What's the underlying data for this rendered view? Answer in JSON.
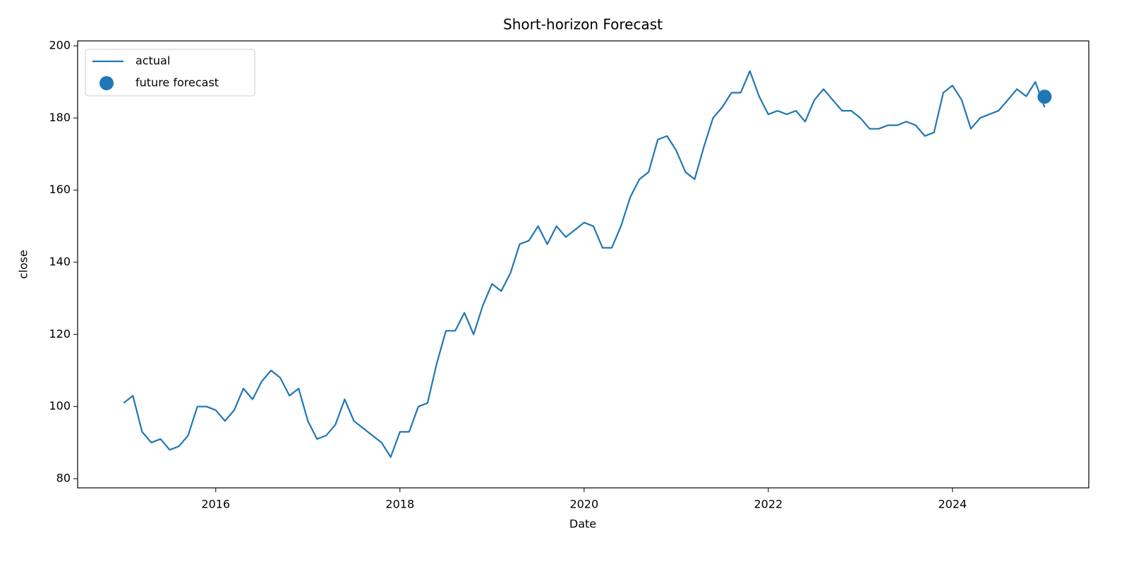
{
  "chart_data": {
    "type": "line",
    "title": "Short-horizon Forecast",
    "x_label": "Date",
    "y_label": "close",
    "xlim": [
      2014.5,
      2025.48
    ],
    "xticks": [
      2016,
      2018,
      2020,
      2022,
      2024
    ],
    "ylim": [
      77.46,
      201.37
    ],
    "yticks": [
      80,
      100,
      120,
      140,
      160,
      180,
      200
    ],
    "legend": "upper left",
    "grid": false,
    "series": [
      {
        "name": "actual",
        "type": "line",
        "color": "#1f77b4",
        "x": [
          2015.0,
          2015.1,
          2015.2,
          2015.3,
          2015.4,
          2015.5,
          2015.6,
          2015.7,
          2015.8,
          2015.9,
          2016.0,
          2016.1,
          2016.2,
          2016.3,
          2016.4,
          2016.5,
          2016.6,
          2016.7,
          2016.8,
          2016.9,
          2017.0,
          2017.1,
          2017.2,
          2017.3,
          2017.4,
          2017.5,
          2017.6,
          2017.7,
          2017.8,
          2017.9,
          2018.0,
          2018.1,
          2018.2,
          2018.3,
          2018.4,
          2018.5,
          2018.6,
          2018.7,
          2018.8,
          2018.9,
          2019.0,
          2019.1,
          2019.2,
          2019.3,
          2019.4,
          2019.5,
          2019.6,
          2019.7,
          2019.8,
          2019.9,
          2020.0,
          2020.1,
          2020.2,
          2020.3,
          2020.4,
          2020.5,
          2020.6,
          2020.7,
          2020.8,
          2020.9,
          2021.0,
          2021.1,
          2021.2,
          2021.3,
          2021.4,
          2021.5,
          2021.6,
          2021.7,
          2021.8,
          2021.9,
          2022.0,
          2022.1,
          2022.2,
          2022.3,
          2022.4,
          2022.5,
          2022.6,
          2022.7,
          2022.8,
          2022.9,
          2023.0,
          2023.1,
          2023.2,
          2023.3,
          2023.4,
          2023.5,
          2023.6,
          2023.7,
          2023.8,
          2023.9,
          2024.0,
          2024.1,
          2024.2,
          2024.3,
          2024.4,
          2024.5,
          2024.6,
          2024.7,
          2024.8,
          2024.9,
          2025.0
        ],
        "values": [
          101,
          103,
          93,
          90,
          91,
          88,
          89,
          92,
          100,
          100,
          99,
          96,
          99,
          105,
          102,
          107,
          110,
          108,
          103,
          105,
          96,
          91,
          92,
          95,
          102,
          96,
          94,
          92,
          90,
          86,
          93,
          93,
          100,
          101,
          112,
          121,
          121,
          126,
          120,
          128,
          134,
          132,
          137,
          145,
          146,
          150,
          145,
          150,
          147,
          149,
          151,
          150,
          144,
          144,
          150,
          158,
          163,
          165,
          174,
          175,
          171,
          165,
          163,
          172,
          180,
          183,
          187,
          187,
          193,
          186,
          181,
          182,
          181,
          182,
          179,
          185,
          188,
          185,
          182,
          182,
          180,
          177,
          177,
          178,
          178,
          179,
          178,
          175,
          176,
          187,
          189,
          185,
          177,
          180,
          181,
          182,
          185,
          188,
          186,
          190,
          183
        ]
      },
      {
        "name": "future forecast",
        "type": "scatter",
        "color": "#1f77b4",
        "x": [
          2025.0
        ],
        "values": [
          185.9
        ]
      }
    ]
  }
}
